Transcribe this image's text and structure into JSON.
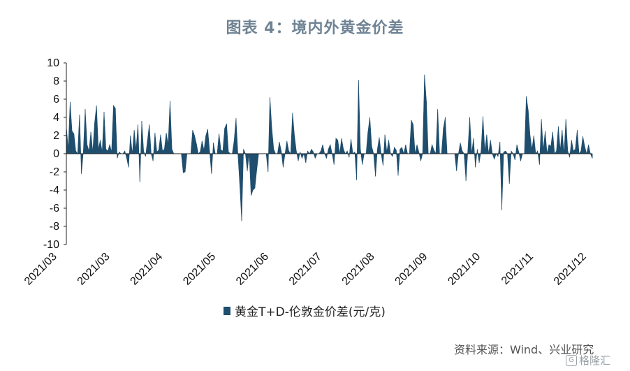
{
  "title": "图表 4：境内外黄金价差",
  "legend_label": "黄金T+D-伦敦金价差(元/克)",
  "source": "资料来源：Wind、兴业研究",
  "watermark": "格隆汇",
  "colors": {
    "series": "#1f4e6e",
    "axis": "#222222"
  },
  "chart_data": {
    "type": "area",
    "title": "图表 4：境内外黄金价差",
    "series_name": "黄金T+D-伦敦金价差(元/克)",
    "ylim": [
      -10,
      10
    ],
    "yticks": [
      10,
      8,
      6,
      4,
      2,
      0,
      -2,
      -4,
      -6,
      -8,
      -10
    ],
    "xticks": [
      "2021/03",
      "2021/03",
      "2021/04",
      "2021/05",
      "2021/06",
      "2021/07",
      "2021/08",
      "2021/09",
      "2021/10",
      "2021/11",
      "2021/12"
    ],
    "grid": false,
    "legend": "bottom-center",
    "values": [
      3.0,
      0.5,
      5.7,
      2.5,
      2.2,
      0.3,
      0.0,
      4.3,
      -2.2,
      0.2,
      4.9,
      1.0,
      0.3,
      2.4,
      0.2,
      3.4,
      5.3,
      0.5,
      1.5,
      0.2,
      4.6,
      0.5,
      0.3,
      1.0,
      0.2,
      5.3,
      5.0,
      -0.5,
      0.2,
      0.0,
      0.0,
      0.3,
      -0.5,
      -1.5,
      2.0,
      0.0,
      2.6,
      0.5,
      3.2,
      -3.1,
      3.6,
      0.3,
      -0.3,
      1.4,
      3.2,
      0.0,
      -0.8,
      2.3,
      0.2,
      0.4,
      2.1,
      0.3,
      0.5,
      2.3,
      1.0,
      5.8,
      0.5,
      0.0,
      0.0,
      0.0,
      0.0,
      0.0,
      -2.1,
      -2.0,
      0.0,
      0.0,
      0.0,
      2.6,
      2.0,
      1.1,
      0.0,
      0.2,
      1.4,
      0.4,
      2.0,
      2.7,
      0.3,
      -2.2,
      1.2,
      0.0,
      0.0,
      2.2,
      0.4,
      0.3,
      2.8,
      3.3,
      0.2,
      0.0,
      0.0,
      1.4,
      3.9,
      0.0,
      -3.4,
      -7.4,
      0.5,
      0.0,
      -1.9,
      0.0,
      -4.6,
      -4.0,
      -3.8,
      -1.8,
      0.0,
      0.0,
      0.0,
      0.0,
      0.0,
      -2.0,
      6.2,
      2.8,
      0.5,
      0.0,
      0.0,
      1.3,
      0.3,
      -1.5,
      0.0,
      1.4,
      0.3,
      0.0,
      4.5,
      2.0,
      0.3,
      -0.8,
      0.2,
      -0.5,
      0.0,
      -1.0,
      0.3,
      0.0,
      0.5,
      0.2,
      -0.5,
      0.0,
      0.0,
      0.3,
      1.0,
      0.0,
      -0.5,
      0.5,
      1.0,
      0.0,
      -1.2,
      1.7,
      1.5,
      0.0,
      1.7,
      0.5,
      0.0,
      0.3,
      -0.4,
      1.6,
      0.0,
      0.2,
      -2.9,
      8.1,
      0.5,
      -1.2,
      0.0,
      0.0,
      2.4,
      4.0,
      0.8,
      0.0,
      -2.5,
      0.5,
      1.8,
      0.0,
      -1.3,
      2.1,
      0.2,
      1.5,
      0.0,
      -0.3,
      0.7,
      0.4,
      -2.4,
      0.5,
      0.7,
      0.0,
      1.0,
      0.0,
      0.0,
      3.7,
      3.2,
      0.0,
      1.0,
      0.2,
      -0.8,
      0.0,
      8.7,
      5.8,
      0.0,
      0.0,
      1.0,
      0.4,
      0.0,
      4.9,
      0.0,
      0.0,
      2.8,
      4.0,
      0.0,
      0.0,
      0.0,
      0.0,
      0.0,
      -1.9,
      0.0,
      1.2,
      0.3,
      0.0,
      -3.0,
      0.4,
      4.0,
      0.0,
      1.7,
      -1.5,
      0.5,
      -1.0,
      0.3,
      4.1,
      0.3,
      2.1,
      0.0,
      1.5,
      0.0,
      -0.6,
      0.0,
      -0.3,
      1.3,
      -6.2,
      0.2,
      0.3,
      0.0,
      -3.3,
      0.3,
      0.0,
      -0.7,
      1.0,
      0.2,
      -0.8,
      0.0,
      0.0,
      6.3,
      4.8,
      2.0,
      0.5,
      2.0,
      0.0,
      0.3,
      -1.2,
      3.8,
      0.4,
      2.5,
      0.0,
      1.0,
      0.8,
      2.4,
      0.0,
      0.3,
      3.0,
      0.4,
      2.6,
      0.0,
      3.8,
      0.3,
      -0.4,
      1.5,
      0.3,
      0.5,
      2.6,
      0.0,
      0.3,
      1.9,
      0.8,
      0.0,
      1.0,
      0.0,
      -0.5
    ]
  }
}
